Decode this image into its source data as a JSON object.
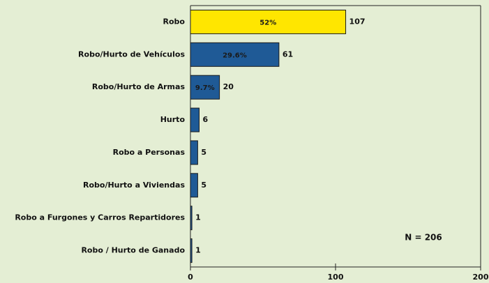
{
  "chart_data": {
    "type": "hbar",
    "categories": [
      "Robo",
      "Robo/Hurto de Vehículos",
      "Robo/Hurto de Armas",
      "Hurto",
      "Robo a Personas",
      "Robo/Hurto a Viviendas",
      "Robo a Furgones y Carros Repartidores",
      "Robo / Hurto de Ganado"
    ],
    "values": [
      107,
      61,
      20,
      6,
      5,
      5,
      1,
      1
    ],
    "bar_labels": [
      "52%",
      "29.6%",
      "9.7%",
      null,
      null,
      null,
      null,
      null
    ],
    "colors": [
      "#ffe600",
      "#1f5a96",
      "#1f5a96",
      "#1f5a96",
      "#1f5a96",
      "#1f5a96",
      "#1f5a96",
      "#1f5a96"
    ],
    "xlim": [
      0,
      200
    ],
    "xticks": [
      0,
      100,
      200
    ],
    "annotation": "N = 206"
  }
}
